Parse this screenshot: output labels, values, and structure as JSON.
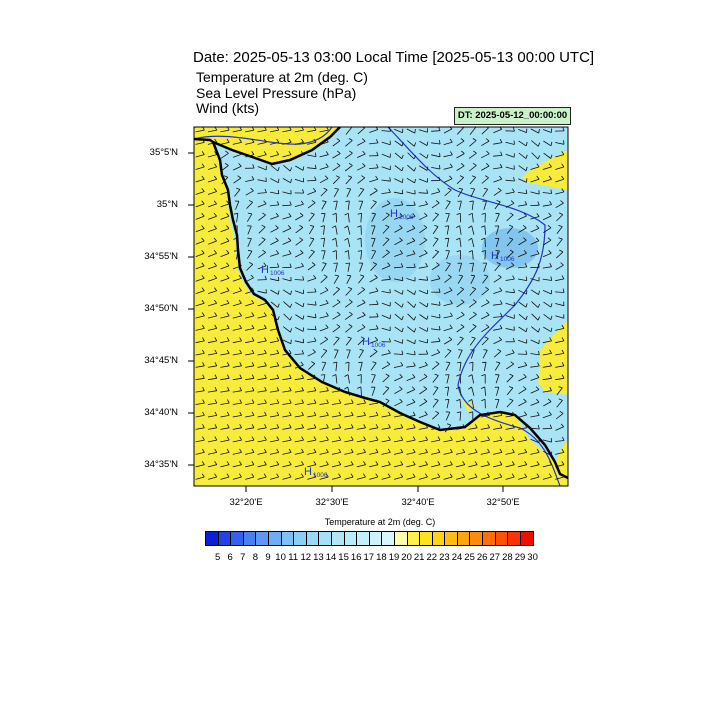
{
  "title": "Date: 2025-05-13  03:00 Local Time [2025-05-13  00:00 UTC]",
  "subtitles": [
    "Temperature at 2m   (deg. C)",
    "Sea Level Pressure   (hPa)",
    "Wind   (kts)"
  ],
  "dt_label": "DT: 2025-05-12_00:00:00",
  "y_ticks": [
    "35°5'N",
    "35°N",
    "34°55'N",
    "34°50'N",
    "34°45'N",
    "34°40'N",
    "34°35'N"
  ],
  "x_ticks": [
    "32°20'E",
    "32°30'E",
    "32°40'E",
    "32°50'E"
  ],
  "pressure_labels": [
    {
      "text": "H",
      "value": "1006"
    },
    {
      "text": "H",
      "value": "1006"
    },
    {
      "text": "H",
      "value": "1006"
    },
    {
      "text": "H",
      "value": "1006"
    },
    {
      "text": "H",
      "value": "1006"
    }
  ],
  "colorbar": {
    "title": "Temperature at 2m  (deg. C)",
    "labels": [
      "5",
      "6",
      "7",
      "8",
      "9",
      "10",
      "11",
      "12",
      "13",
      "14",
      "15",
      "16",
      "17",
      "18",
      "19",
      "20",
      "21",
      "22",
      "23",
      "24",
      "25",
      "26",
      "27",
      "28",
      "29",
      "30"
    ],
    "colors": [
      "#0a1fd6",
      "#2142e6",
      "#3560ee",
      "#4a7ef2",
      "#5f98f4",
      "#6faef5",
      "#7fc0f6",
      "#8ccff6",
      "#98d9f7",
      "#a3e1f8",
      "#ade7f8",
      "#b7ecf9",
      "#c2f0fa",
      "#cdf4fb",
      "#d8f7fc",
      "#fffcb0",
      "#fff04a",
      "#ffe21f",
      "#ffd21a",
      "#ffbe14",
      "#ffa50f",
      "#ff8a0c",
      "#ff6e09",
      "#ff5006",
      "#ff3003",
      "#f00d00"
    ]
  },
  "colors": {
    "land": "#a8e4f5",
    "sea": "#f7eb3c",
    "isobar": "#2233cc",
    "coast": "#000000"
  }
}
